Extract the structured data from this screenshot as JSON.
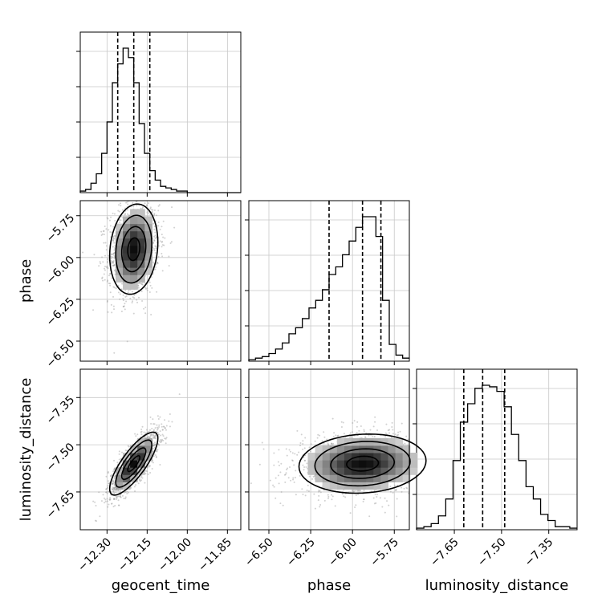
{
  "chart_data": {
    "type": "corner",
    "parameters": [
      "geocent_time",
      "phase",
      "luminosity_distance"
    ],
    "axis_labels": {
      "geocent_time": "geocent_time",
      "phase": "phase",
      "luminosity_distance": "luminosity_distance"
    },
    "ranges": {
      "geocent_time": [
        -12.4,
        -11.8
      ],
      "phase": [
        -6.62,
        -5.66
      ],
      "luminosity_distance": [
        -7.77,
        -7.26
      ]
    },
    "ticks": {
      "geocent_time": [
        -12.3,
        -12.15,
        -12.0,
        -11.85
      ],
      "phase": [
        -6.5,
        -6.25,
        -6.0,
        -5.75
      ],
      "luminosity_distance": [
        -7.65,
        -7.5,
        -7.35
      ]
    },
    "tick_labels": {
      "geocent_time": [
        "−12.30",
        "−12.15",
        "−12.00",
        "−11.85"
      ],
      "phase": [
        "−6.50",
        "−6.25",
        "−6.00",
        "−5.75"
      ],
      "luminosity_distance": [
        "−7.65",
        "−7.50",
        "−7.35"
      ]
    },
    "quantiles": {
      "geocent_time": [
        -12.26,
        -12.2,
        -12.14
      ],
      "phase": [
        -6.14,
        -5.94,
        -5.83
      ],
      "luminosity_distance": [
        -7.62,
        -7.56,
        -7.49
      ]
    },
    "histograms": {
      "geocent_time": {
        "min": -12.4,
        "max": -11.8,
        "counts": [
          1,
          2,
          6,
          12,
          25,
          45,
          70,
          82,
          92,
          86,
          70,
          44,
          25,
          14,
          8,
          4,
          3,
          2,
          1,
          1,
          0,
          0,
          0,
          0,
          0,
          0,
          0,
          0,
          0,
          0
        ]
      },
      "phase": {
        "min": -6.62,
        "max": -5.66,
        "counts": [
          1,
          2,
          3,
          5,
          8,
          12,
          18,
          22,
          28,
          35,
          40,
          47,
          57,
          62,
          70,
          79,
          88,
          95,
          95,
          82,
          40,
          11,
          4,
          2
        ]
      },
      "luminosity_distance": {
        "min": -7.77,
        "max": -7.26,
        "counts": [
          1,
          2,
          4,
          9,
          20,
          45,
          70,
          82,
          92,
          94,
          93,
          90,
          80,
          62,
          45,
          28,
          20,
          10,
          6,
          2,
          2,
          1
        ]
      }
    },
    "pairs": [
      {
        "x": "geocent_time",
        "y": "phase",
        "mean": [
          -12.2,
          -5.95
        ],
        "sd": [
          0.045,
          0.135
        ],
        "corr": 0.15
      },
      {
        "x": "geocent_time",
        "y": "luminosity_distance",
        "mean": [
          -12.2,
          -7.56
        ],
        "sd": [
          0.045,
          0.05
        ],
        "corr": 0.8
      },
      {
        "x": "phase",
        "y": "luminosity_distance",
        "mean": [
          -5.94,
          -7.56
        ],
        "sd": [
          0.19,
          0.047
        ],
        "corr": 0.1
      }
    ]
  }
}
